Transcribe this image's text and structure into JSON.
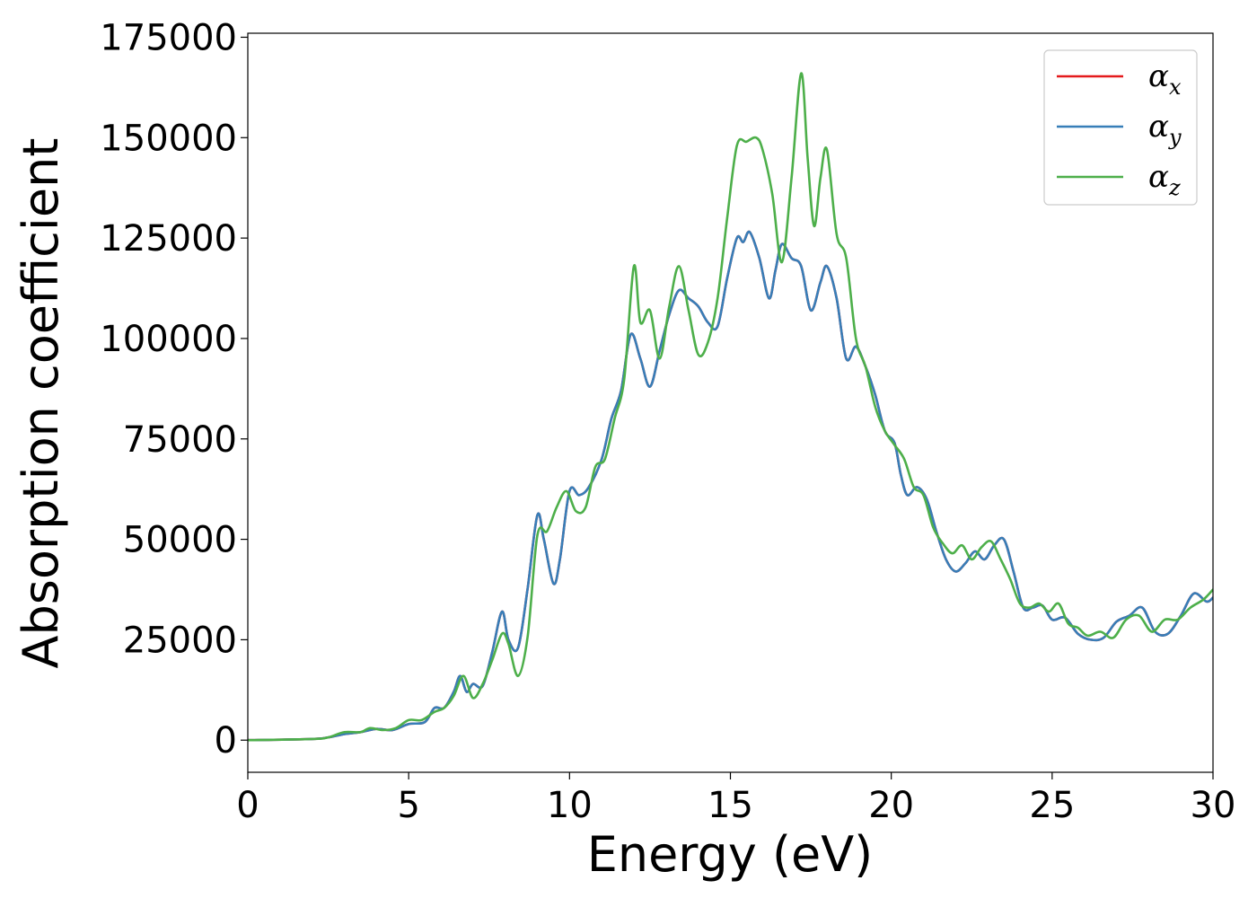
{
  "chart_data": {
    "type": "line",
    "title": "",
    "xlabel": "Energy (eV)",
    "ylabel": "Absorption coefficient",
    "xlim": [
      0,
      30
    ],
    "ylim": [
      -8000,
      176000
    ],
    "xticks": [
      0,
      5,
      10,
      15,
      20,
      25,
      30
    ],
    "xtick_labels": [
      "0",
      "5",
      "10",
      "15",
      "20",
      "25",
      "30"
    ],
    "yticks": [
      0,
      25000,
      50000,
      75000,
      100000,
      125000,
      150000,
      175000
    ],
    "ytick_labels": [
      "0",
      "25000",
      "50000",
      "75000",
      "100000",
      "125000",
      "150000",
      "175000"
    ],
    "grid": false,
    "legend_position": "top-right",
    "series": [
      {
        "name": "α",
        "subscript": "x",
        "color": "#e41a1c",
        "x": [
          0,
          2,
          2.5,
          3,
          3.5,
          4,
          4.5,
          5,
          5.5,
          5.8,
          6.1,
          6.4,
          6.6,
          6.8,
          7.0,
          7.3,
          7.6,
          7.9,
          8.1,
          8.4,
          8.7,
          9.0,
          9.2,
          9.5,
          9.7,
          10.0,
          10.3,
          10.6,
          11.0,
          11.3,
          11.6,
          11.9,
          12.2,
          12.5,
          12.8,
          13.1,
          13.4,
          13.7,
          14.0,
          14.3,
          14.6,
          14.9,
          15.2,
          15.4,
          15.6,
          15.9,
          16.2,
          16.4,
          16.6,
          16.9,
          17.2,
          17.5,
          17.8,
          18.0,
          18.3,
          18.6,
          18.9,
          19.2,
          19.5,
          19.8,
          20.1,
          20.3,
          20.5,
          20.8,
          21.1,
          21.4,
          21.7,
          22.0,
          22.3,
          22.6,
          22.9,
          23.2,
          23.5,
          23.8,
          24.1,
          24.4,
          24.7,
          25.0,
          25.4,
          25.8,
          26.2,
          26.6,
          27.0,
          27.4,
          27.8,
          28.2,
          28.6,
          29.0,
          29.4,
          29.8,
          30.0
        ],
        "y": [
          0,
          300,
          700,
          1500,
          2000,
          2800,
          2500,
          4000,
          4500,
          8000,
          8000,
          12000,
          16000,
          12000,
          14000,
          13500,
          22000,
          32000,
          25000,
          23000,
          38000,
          56000,
          50000,
          39000,
          45000,
          62000,
          61000,
          63000,
          70000,
          80000,
          87000,
          101000,
          95000,
          88000,
          97000,
          106000,
          112000,
          110000,
          108000,
          104000,
          103000,
          115000,
          125000,
          124000,
          126500,
          120000,
          110000,
          117000,
          123500,
          120000,
          118000,
          107000,
          114000,
          118000,
          110000,
          95000,
          98000,
          93000,
          86000,
          77000,
          74000,
          66000,
          61000,
          63000,
          60000,
          52000,
          45000,
          42000,
          44000,
          47000,
          45000,
          48500,
          50000,
          42000,
          33000,
          33000,
          33500,
          30000,
          30500,
          26500,
          25000,
          25500,
          29500,
          31000,
          33000,
          27000,
          26500,
          31000,
          36500,
          34500,
          35500
        ]
      },
      {
        "name": "α",
        "subscript": "y",
        "color": "#377eb8",
        "x": [
          0,
          2,
          2.5,
          3,
          3.5,
          4,
          4.5,
          5,
          5.5,
          5.8,
          6.1,
          6.4,
          6.6,
          6.8,
          7.0,
          7.3,
          7.6,
          7.9,
          8.1,
          8.4,
          8.7,
          9.0,
          9.2,
          9.5,
          9.7,
          10.0,
          10.3,
          10.6,
          11.0,
          11.3,
          11.6,
          11.9,
          12.2,
          12.5,
          12.8,
          13.1,
          13.4,
          13.7,
          14.0,
          14.3,
          14.6,
          14.9,
          15.2,
          15.4,
          15.6,
          15.9,
          16.2,
          16.4,
          16.6,
          16.9,
          17.2,
          17.5,
          17.8,
          18.0,
          18.3,
          18.6,
          18.9,
          19.2,
          19.5,
          19.8,
          20.1,
          20.3,
          20.5,
          20.8,
          21.1,
          21.4,
          21.7,
          22.0,
          22.3,
          22.6,
          22.9,
          23.2,
          23.5,
          23.8,
          24.1,
          24.4,
          24.7,
          25.0,
          25.4,
          25.8,
          26.2,
          26.6,
          27.0,
          27.4,
          27.8,
          28.2,
          28.6,
          29.0,
          29.4,
          29.8,
          30.0
        ],
        "y": [
          0,
          300,
          700,
          1500,
          2000,
          2800,
          2500,
          4000,
          4500,
          8000,
          8000,
          12000,
          16000,
          12000,
          14000,
          13500,
          22000,
          32000,
          25000,
          23000,
          38000,
          56000,
          50000,
          39000,
          45000,
          62000,
          61000,
          63000,
          70000,
          80000,
          87000,
          101000,
          95000,
          88000,
          97000,
          106000,
          112000,
          110000,
          108000,
          104000,
          103000,
          115000,
          125000,
          124000,
          126500,
          120000,
          110000,
          117000,
          123500,
          120000,
          118000,
          107000,
          114000,
          118000,
          110000,
          95000,
          98000,
          93000,
          86000,
          77000,
          74000,
          66000,
          61000,
          63000,
          60000,
          52000,
          45000,
          42000,
          44000,
          47000,
          45000,
          48500,
          50000,
          42000,
          33000,
          33000,
          33500,
          30000,
          30500,
          26500,
          25000,
          25500,
          29500,
          31000,
          33000,
          27000,
          26500,
          31000,
          36500,
          34500,
          35500
        ]
      },
      {
        "name": "α",
        "subscript": "z",
        "color": "#4daf4a",
        "x": [
          0,
          2,
          2.5,
          3,
          3.5,
          3.8,
          4.2,
          4.6,
          5.0,
          5.4,
          5.8,
          6.1,
          6.4,
          6.7,
          7.0,
          7.3,
          7.6,
          7.9,
          8.1,
          8.4,
          8.7,
          9.0,
          9.3,
          9.6,
          9.9,
          10.2,
          10.5,
          10.8,
          11.1,
          11.4,
          11.7,
          12.0,
          12.2,
          12.5,
          12.8,
          13.1,
          13.4,
          13.7,
          14.0,
          14.3,
          14.6,
          14.9,
          15.2,
          15.5,
          15.8,
          16.0,
          16.3,
          16.6,
          16.9,
          17.2,
          17.4,
          17.6,
          17.8,
          18.0,
          18.3,
          18.6,
          18.9,
          19.2,
          19.5,
          19.8,
          20.1,
          20.4,
          20.7,
          21.0,
          21.3,
          21.6,
          21.9,
          22.2,
          22.5,
          22.8,
          23.1,
          23.4,
          23.7,
          24.0,
          24.3,
          24.6,
          24.9,
          25.2,
          25.5,
          25.8,
          26.1,
          26.5,
          26.9,
          27.3,
          27.7,
          28.1,
          28.5,
          28.9,
          29.3,
          29.7,
          30.0
        ],
        "y": [
          0,
          300,
          700,
          2000,
          2000,
          3000,
          2500,
          3000,
          5000,
          5000,
          7000,
          8000,
          11000,
          16000,
          10500,
          14000,
          20000,
          26500,
          24000,
          16000,
          26000,
          51000,
          52000,
          58000,
          62000,
          57000,
          58000,
          68000,
          70000,
          80000,
          90000,
          118000,
          104000,
          107000,
          95000,
          108000,
          118000,
          107000,
          96000,
          99000,
          110000,
          130000,
          148000,
          149000,
          150000,
          147000,
          136000,
          119000,
          140000,
          166000,
          145000,
          128000,
          140000,
          147000,
          126000,
          120000,
          100000,
          93000,
          83000,
          77000,
          73500,
          70000,
          63000,
          61000,
          53000,
          49000,
          46500,
          48500,
          45000,
          48000,
          49500,
          45000,
          40000,
          34000,
          33000,
          34000,
          32000,
          34000,
          29000,
          28000,
          26000,
          27000,
          25500,
          30000,
          31000,
          27000,
          30000,
          30000,
          33000,
          35000,
          37500
        ]
      }
    ]
  }
}
